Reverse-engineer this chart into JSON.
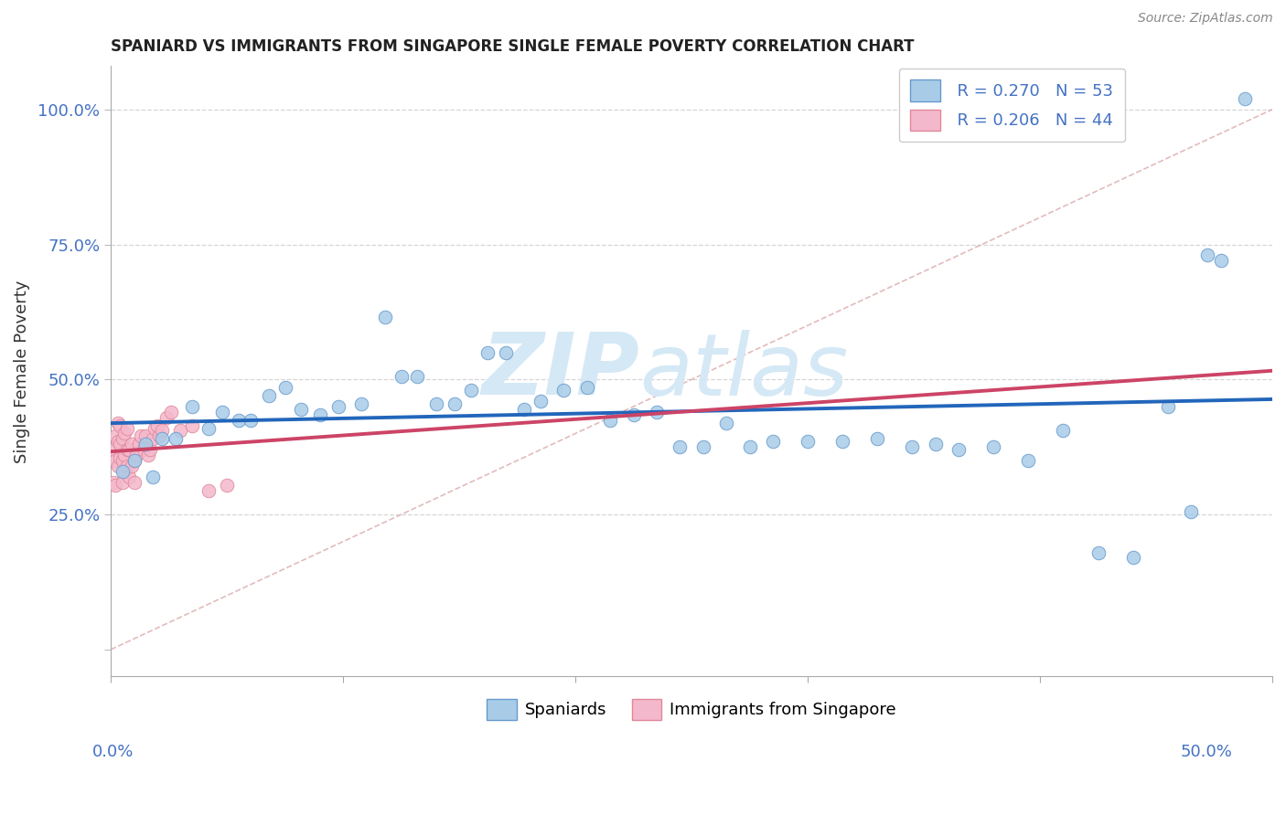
{
  "title": "SPANIARD VS IMMIGRANTS FROM SINGAPORE SINGLE FEMALE POVERTY CORRELATION CHART",
  "source": "Source: ZipAtlas.com",
  "ylabel": "Single Female Poverty",
  "xlim": [
    0,
    0.5
  ],
  "ylim": [
    -0.05,
    1.08
  ],
  "legend_blue_r": "R = 0.270",
  "legend_blue_n": "N = 53",
  "legend_pink_r": "R = 0.206",
  "legend_pink_n": "N = 44",
  "legend_label_blue": "Spaniards",
  "legend_label_pink": "Immigrants from Singapore",
  "blue_color": "#a8cce8",
  "pink_color": "#f4b8cc",
  "blue_edge_color": "#6699cc",
  "pink_edge_color": "#e08899",
  "blue_line_color": "#2266bb",
  "pink_line_color": "#cc4466",
  "diag_line_color": "#ddaaaa",
  "grid_color": "#cccccc",
  "blue_scatter_x": [
    0.005,
    0.01,
    0.015,
    0.018,
    0.022,
    0.028,
    0.035,
    0.042,
    0.048,
    0.055,
    0.06,
    0.068,
    0.075,
    0.082,
    0.09,
    0.098,
    0.108,
    0.118,
    0.125,
    0.132,
    0.14,
    0.148,
    0.155,
    0.162,
    0.17,
    0.178,
    0.185,
    0.195,
    0.205,
    0.215,
    0.225,
    0.235,
    0.245,
    0.255,
    0.265,
    0.275,
    0.285,
    0.3,
    0.315,
    0.33,
    0.345,
    0.355,
    0.365,
    0.38,
    0.395,
    0.41,
    0.425,
    0.44,
    0.455,
    0.465,
    0.472,
    0.478,
    0.488
  ],
  "blue_scatter_y": [
    0.33,
    0.35,
    0.38,
    0.32,
    0.39,
    0.39,
    0.45,
    0.41,
    0.44,
    0.425,
    0.425,
    0.47,
    0.485,
    0.445,
    0.435,
    0.45,
    0.455,
    0.615,
    0.505,
    0.505,
    0.455,
    0.455,
    0.48,
    0.55,
    0.55,
    0.445,
    0.46,
    0.48,
    0.485,
    0.425,
    0.435,
    0.44,
    0.375,
    0.375,
    0.42,
    0.375,
    0.385,
    0.385,
    0.385,
    0.39,
    0.375,
    0.38,
    0.37,
    0.375,
    0.35,
    0.405,
    0.18,
    0.17,
    0.45,
    0.255,
    0.73,
    0.72,
    1.02
  ],
  "pink_scatter_x": [
    0.001,
    0.001,
    0.002,
    0.002,
    0.002,
    0.003,
    0.003,
    0.003,
    0.004,
    0.004,
    0.004,
    0.005,
    0.005,
    0.005,
    0.006,
    0.006,
    0.006,
    0.007,
    0.007,
    0.007,
    0.008,
    0.008,
    0.009,
    0.009,
    0.01,
    0.01,
    0.011,
    0.012,
    0.013,
    0.014,
    0.015,
    0.016,
    0.017,
    0.018,
    0.019,
    0.02,
    0.021,
    0.022,
    0.024,
    0.026,
    0.03,
    0.035,
    0.042,
    0.05
  ],
  "pink_scatter_y": [
    0.31,
    0.37,
    0.305,
    0.35,
    0.395,
    0.34,
    0.385,
    0.42,
    0.355,
    0.38,
    0.415,
    0.31,
    0.35,
    0.39,
    0.33,
    0.36,
    0.4,
    0.34,
    0.37,
    0.41,
    0.32,
    0.37,
    0.34,
    0.38,
    0.31,
    0.35,
    0.36,
    0.38,
    0.395,
    0.37,
    0.395,
    0.36,
    0.37,
    0.39,
    0.41,
    0.415,
    0.395,
    0.405,
    0.43,
    0.44,
    0.405,
    0.415,
    0.295,
    0.305
  ],
  "yticks": [
    0.0,
    0.25,
    0.5,
    0.75,
    1.0
  ],
  "ytick_labels": [
    "",
    "25.0%",
    "50.0%",
    "75.0%",
    "100.0%"
  ],
  "xtick_positions": [
    0.0,
    0.1,
    0.2,
    0.3,
    0.4,
    0.5
  ],
  "marker_size": 110,
  "title_fontsize": 12,
  "tick_fontsize": 13,
  "legend_fontsize": 13,
  "source_fontsize": 10
}
